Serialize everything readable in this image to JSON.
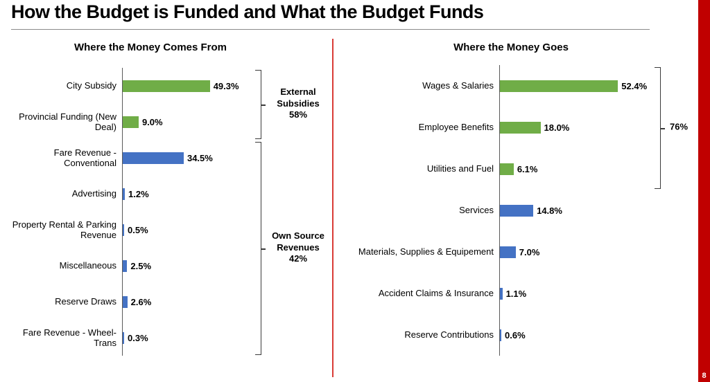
{
  "slide": {
    "title": "How the Budget is Funded and What the Budget Funds",
    "page_number": "8"
  },
  "colors": {
    "green": "#70AD47",
    "blue": "#4472C4",
    "accent_red": "#C00000",
    "divider_red": "#D93A35"
  },
  "chart_data": [
    {
      "type": "bar",
      "orientation": "horizontal",
      "title": "Where the Money Comes From",
      "unit": "%",
      "categories": [
        "City Subsidy",
        "Provincial Funding (New Deal)",
        "Fare Revenue - Conventional",
        "Advertising",
        "Property Rental & Parking Revenue",
        "Miscellaneous",
        "Reserve Draws",
        "Fare Revenue - Wheel-Trans"
      ],
      "values": [
        49.3,
        9.0,
        34.5,
        1.2,
        0.5,
        2.5,
        2.6,
        0.3
      ],
      "value_labels": [
        "49.3%",
        "9.0%",
        "34.5%",
        "1.2%",
        "0.5%",
        "2.5%",
        "2.6%",
        "0.3%"
      ],
      "bar_colors": [
        "green",
        "green",
        "blue",
        "blue",
        "blue",
        "blue",
        "blue",
        "blue"
      ],
      "annotations": [
        {
          "label": "External Subsidies",
          "value": "58%",
          "from": 0,
          "to": 1
        },
        {
          "label": "Own Source Revenues",
          "value": "42%",
          "from": 2,
          "to": 7
        }
      ]
    },
    {
      "type": "bar",
      "orientation": "horizontal",
      "title": "Where the Money Goes",
      "unit": "%",
      "categories": [
        "Wages & Salaries",
        "Employee Benefits",
        "Utilities and Fuel",
        "Services",
        "Materials,  Supplies & Equipement",
        "Accident Claims & Insurance",
        "Reserve Contributions"
      ],
      "values": [
        52.4,
        18.0,
        6.1,
        14.8,
        7.0,
        1.1,
        0.6
      ],
      "value_labels": [
        "52.4%",
        "18.0%",
        "6.1%",
        "14.8%",
        "7.0%",
        "1.1%",
        "0.6%"
      ],
      "bar_colors": [
        "green",
        "green",
        "green",
        "blue",
        "blue",
        "blue",
        "blue"
      ],
      "annotations": [
        {
          "label": "",
          "value": "76%",
          "from": 0,
          "to": 2
        }
      ]
    }
  ]
}
